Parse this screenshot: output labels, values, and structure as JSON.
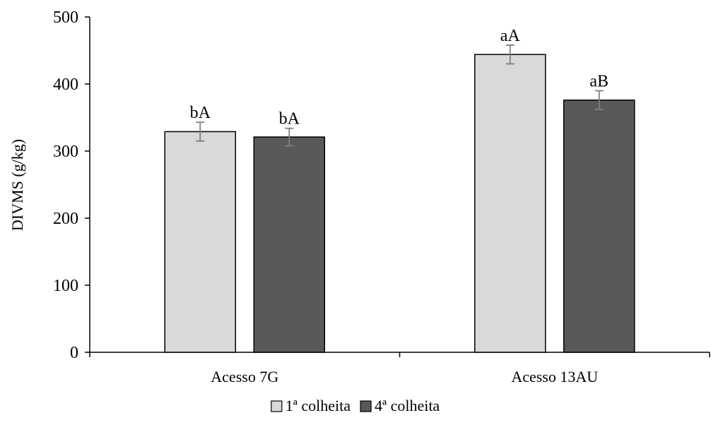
{
  "chart_data": {
    "type": "bar",
    "categories": [
      "Acesso 7G",
      "Acesso 13AU"
    ],
    "series": [
      {
        "name": "1ª colheita",
        "color": "#d9d9d9",
        "values": [
          329,
          444
        ],
        "errors": [
          14,
          14
        ],
        "labels": [
          "bA",
          "aA"
        ]
      },
      {
        "name": "4ª colheita",
        "color": "#595959",
        "values": [
          321,
          376
        ],
        "errors": [
          13,
          14
        ],
        "labels": [
          "bA",
          "aB"
        ]
      }
    ],
    "xlabel": "",
    "ylabel": "DIVMS (g/kg)",
    "ylim": [
      0,
      500
    ],
    "yticks": [
      0,
      100,
      200,
      300,
      400,
      500
    ],
    "grid": false,
    "legend_position": "bottom",
    "error_bar_color": "#7f7f7f"
  }
}
